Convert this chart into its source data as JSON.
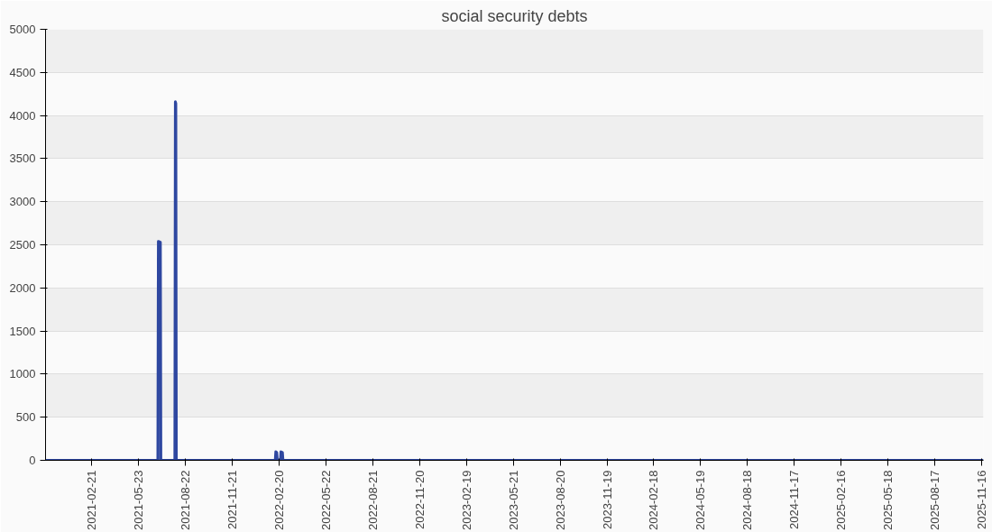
{
  "chart_data": {
    "type": "area",
    "title": "social security debts",
    "x": [
      "2020-11-24",
      "2021-06-30",
      "2021-07-01",
      "2021-07-05",
      "2021-07-06",
      "2021-08-02",
      "2021-08-03",
      "2021-08-04",
      "2021-08-05",
      "2022-02-13",
      "2022-02-14",
      "2022-02-16",
      "2022-02-17",
      "2022-02-23",
      "2022-02-24",
      "2022-02-27",
      "2022-02-28",
      "2025-11-19"
    ],
    "series": [
      {
        "color": "#2e47a0",
        "values": [
          0,
          0,
          2540,
          2530,
          0,
          0,
          4160,
          4140,
          0,
          0,
          100,
          90,
          0,
          0,
          100,
          90,
          0,
          0
        ]
      }
    ],
    "xlim": [
      "2020-11-24",
      "2025-11-19"
    ],
    "xticks": [
      "2021-02-21",
      "2021-05-23",
      "2021-08-22",
      "2021-11-21",
      "2022-02-20",
      "2022-05-22",
      "2022-08-21",
      "2022-11-20",
      "2023-02-19",
      "2023-05-21",
      "2023-08-20",
      "2023-11-19",
      "2024-02-18",
      "2024-05-19",
      "2024-08-18",
      "2024-11-17",
      "2025-02-16",
      "2025-05-18",
      "2025-08-17",
      "2025-11-16"
    ],
    "ylim": [
      0,
      5000
    ],
    "yticks": [
      0,
      500,
      1000,
      1500,
      2000,
      2500,
      3000,
      3500,
      4000,
      4500,
      5000
    ],
    "grid": "y"
  }
}
